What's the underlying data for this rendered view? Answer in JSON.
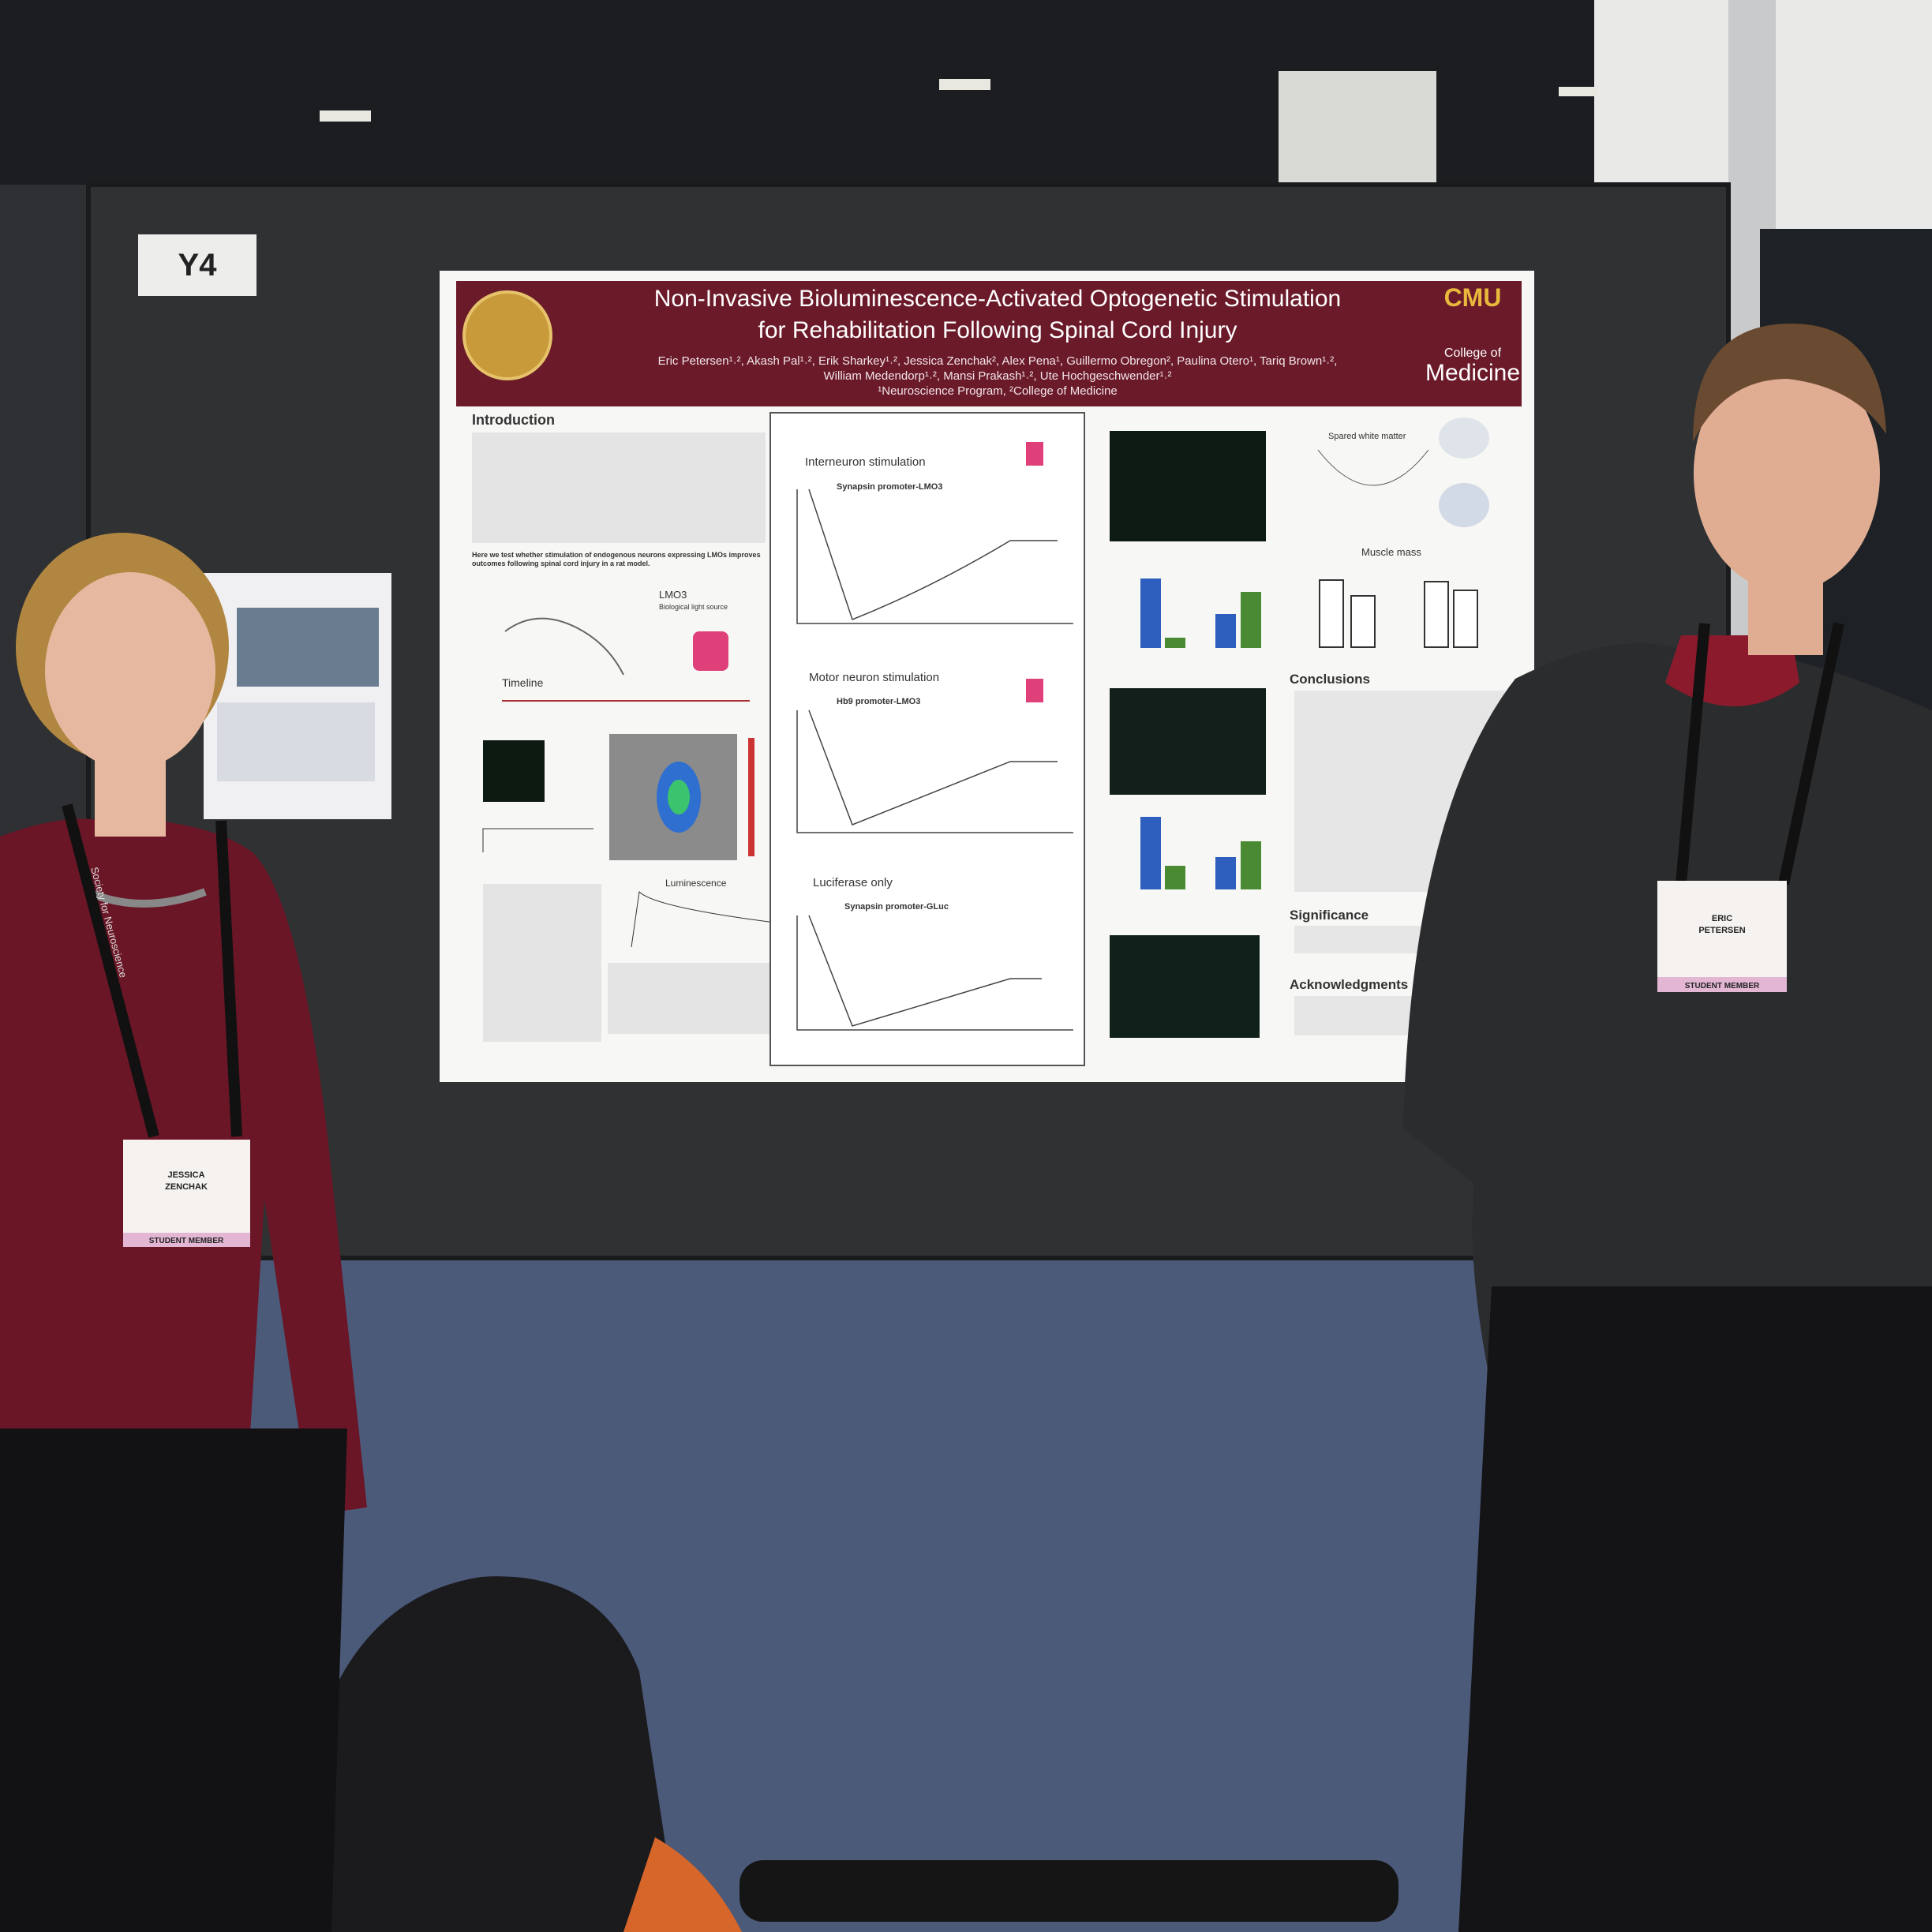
{
  "board_label": "Y4",
  "poster": {
    "title_line_1": "Non-Invasive Bioluminescence-Activated Optogenetic Stimulation",
    "title_line_2": "for Rehabilitation Following Spinal Cord Injury",
    "authors_line_1": "Eric Petersen¹˒², Akash Pal¹˒², Erik Sharkey¹˒², Jessica Zenchak², Alex Pena¹, Guillermo Obregon², Paulina Otero¹, Tariq Brown¹˒²,",
    "authors_line_2": "William Medendorp¹˒², Mansi Prakash¹˒², Ute Hochgeschwender¹˒²",
    "affiliation": "¹Neuroscience Program, ²College of Medicine",
    "logo": "CMU",
    "college_line_1": "College of",
    "college_line_2": "Medicine",
    "sections": {
      "introduction": "Introduction",
      "hypothesis": "Here we test whether stimulation of endogenous neurons expressing LMOs improves outcomes following spinal cord injury in a rat model.",
      "lmo3": "LMO3",
      "lmo3_caption": "Biological light source",
      "timeline": "Timeline",
      "luminescence": "Luminescence",
      "interneuron": "Interneuron stimulation",
      "interneuron_promoter": "Synapsin promoter-LMO3",
      "motor": "Motor neuron stimulation",
      "motor_promoter": "Hb9 promoter-LMO3",
      "luciferase": "Luciferase only",
      "luciferase_promoter": "Synapsin promoter-GLuc",
      "spared": "Spared white matter",
      "muscle": "Muscle mass",
      "conclusions": "Conclusions",
      "significance": "Significance",
      "acknowledgments": "Acknowledgments"
    }
  },
  "badges": {
    "left_name_1": "JESSICA",
    "left_name_2": "ZENCHAK",
    "right_name_1": "ERIC",
    "right_name_2": "PETERSEN",
    "member": "STUDENT MEMBER",
    "lanyard": "Society for Neuroscience"
  }
}
